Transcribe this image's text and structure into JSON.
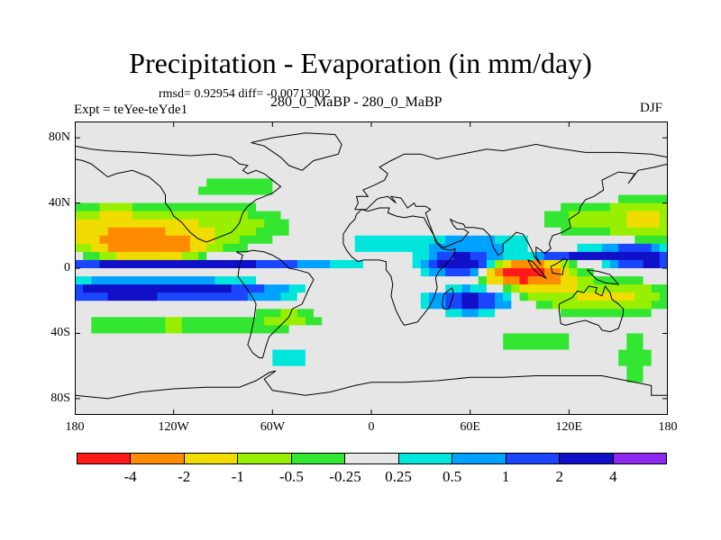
{
  "chart_data": {
    "type": "heatmap",
    "title": "Precipitation - Evaporation (in mm/day)",
    "stats_text": "rmsd= 0.92954  diff= -0.00713002",
    "subtitle": "280_0_MaBP - 280_0_MaBP",
    "left_label": "Expt = teYee-teYde1",
    "right_label": "DJF",
    "x_range": [
      -180,
      180
    ],
    "y_range": [
      -90,
      90
    ],
    "x_ticks": [
      {
        "value": -180,
        "label": "180"
      },
      {
        "value": -120,
        "label": "120W"
      },
      {
        "value": -60,
        "label": "60W"
      },
      {
        "value": 0,
        "label": "0"
      },
      {
        "value": 60,
        "label": "60E"
      },
      {
        "value": 120,
        "label": "120E"
      },
      {
        "value": 180,
        "label": "180"
      }
    ],
    "y_ticks": [
      {
        "value": 80,
        "label": "80N"
      },
      {
        "value": 40,
        "label": "40N"
      },
      {
        "value": 0,
        "label": "0"
      },
      {
        "value": -40,
        "label": "40S"
      },
      {
        "value": -80,
        "label": "80S"
      }
    ],
    "levels": [
      "-4",
      "-2",
      "-1",
      "-0.5",
      "-0.25",
      "0.25",
      "0.5",
      "1",
      "2",
      "4"
    ],
    "colors": [
      "#ff1a1a",
      "#ff8c00",
      "#f0dc00",
      "#98f000",
      "#32e632",
      "#e6e6e6",
      "#00e6dc",
      "#00a2ff",
      "#1a46ff",
      "#1010c8",
      "#8c28f0"
    ],
    "missing_color": "#e6e6e6",
    "anomalies": [
      {
        "lon": -133,
        "lat": 14,
        "slon": 26,
        "slat": 8,
        "amp": -3.5
      },
      {
        "lon": -160,
        "lat": 24,
        "slon": 30,
        "slat": 12,
        "amp": -1.6
      },
      {
        "lon": -100,
        "lat": 26,
        "slon": 45,
        "slat": 13,
        "amp": -0.9
      },
      {
        "lon": -120,
        "lat": 3,
        "slon": 70,
        "slat": 2.6,
        "amp": 3.5
      },
      {
        "lon": -155,
        "lat": -14,
        "slon": 35,
        "slat": 5,
        "amp": 3.0
      },
      {
        "lon": -100,
        "lat": -14,
        "slon": 40,
        "slat": 5,
        "amp": 2.6
      },
      {
        "lon": -120,
        "lat": -35,
        "slon": 60,
        "slat": 6,
        "amp": -0.6
      },
      {
        "lon": -50,
        "lat": -30,
        "slon": 18,
        "slat": 6,
        "amp": -0.6
      },
      {
        "lon": 90,
        "lat": -3,
        "slon": 17,
        "slat": 6,
        "amp": -5.5
      },
      {
        "lon": 106,
        "lat": -6,
        "slon": 18,
        "slat": 12,
        "amp": -1.7
      },
      {
        "lon": 145,
        "lat": -18,
        "slon": 30,
        "slat": 10,
        "amp": -1.2
      },
      {
        "lon": 135,
        "lat": 8,
        "slon": 40,
        "slat": 3,
        "amp": 2.6
      },
      {
        "lon": 170,
        "lat": 4,
        "slon": 20,
        "slat": 3,
        "amp": 2.6
      },
      {
        "lon": 160,
        "lat": 10,
        "slon": 15,
        "slat": 4,
        "amp": 2.0
      },
      {
        "lon": 55,
        "lat": 3,
        "slon": 18,
        "slat": 6,
        "amp": 3.4
      },
      {
        "lon": 60,
        "lat": -20,
        "slon": 20,
        "slat": 6,
        "amp": 2.5
      },
      {
        "lon": 60,
        "lat": 15,
        "slon": 45,
        "slat": 5,
        "amp": 0.7
      },
      {
        "lon": 5,
        "lat": 15,
        "slon": 20,
        "slat": 6,
        "amp": 0.4
      },
      {
        "lon": 140,
        "lat": 30,
        "slon": 35,
        "slat": 10,
        "amp": -0.7
      },
      {
        "lon": 170,
        "lat": 30,
        "slon": 20,
        "slat": 12,
        "amp": -0.8
      },
      {
        "lon": 100,
        "lat": -45,
        "slon": 25,
        "slat": 6,
        "amp": -0.6
      },
      {
        "lon": 160,
        "lat": -55,
        "slon": 10,
        "slat": 18,
        "amp": -0.5
      },
      {
        "lon": -80,
        "lat": 50,
        "slon": 40,
        "slat": 6,
        "amp": -0.35
      },
      {
        "lon": -50,
        "lat": -55,
        "slon": 20,
        "slat": 6,
        "amp": 0.4
      }
    ],
    "coastlines": [
      [
        [
          -180,
          75
        ],
        [
          -170,
          73
        ],
        [
          -160,
          72
        ],
        [
          -140,
          71
        ],
        [
          -125,
          70
        ],
        [
          -110,
          69
        ],
        [
          -95,
          70
        ],
        [
          -85,
          68
        ],
        [
          -80,
          64
        ],
        [
          -75,
          63
        ],
        [
          -78,
          60
        ],
        [
          -75,
          58
        ],
        [
          -70,
          60
        ],
        [
          -65,
          58
        ],
        [
          -60,
          54
        ],
        [
          -55,
          50
        ],
        [
          -60,
          46
        ],
        [
          -65,
          44
        ],
        [
          -70,
          42
        ],
        [
          -75,
          38
        ],
        [
          -78,
          34
        ],
        [
          -80,
          28
        ],
        [
          -82,
          25
        ],
        [
          -85,
          22
        ],
        [
          -90,
          20
        ],
        [
          -95,
          18
        ],
        [
          -100,
          16
        ],
        [
          -105,
          18
        ],
        [
          -110,
          22
        ],
        [
          -115,
          28
        ],
        [
          -120,
          32
        ],
        [
          -122,
          36
        ],
        [
          -125,
          40
        ],
        [
          -125,
          45
        ],
        [
          -128,
          50
        ],
        [
          -135,
          56
        ],
        [
          -145,
          60
        ],
        [
          -155,
          58
        ],
        [
          -160,
          56
        ],
        [
          -165,
          60
        ],
        [
          -170,
          64
        ],
        [
          -175,
          66
        ],
        [
          -180,
          67
        ]
      ],
      [
        [
          -82,
          10
        ],
        [
          -78,
          8
        ],
        [
          -80,
          2
        ],
        [
          -81,
          -5
        ],
        [
          -76,
          -12
        ],
        [
          -72,
          -18
        ],
        [
          -70,
          -22
        ],
        [
          -71,
          -30
        ],
        [
          -73,
          -40
        ],
        [
          -75,
          -47
        ],
        [
          -72,
          -52
        ],
        [
          -68,
          -55
        ],
        [
          -66,
          -55
        ],
        [
          -64,
          -48
        ],
        [
          -62,
          -42
        ],
        [
          -58,
          -38
        ],
        [
          -55,
          -35
        ],
        [
          -50,
          -30
        ],
        [
          -48,
          -25
        ],
        [
          -42,
          -22
        ],
        [
          -38,
          -13
        ],
        [
          -35,
          -7
        ],
        [
          -38,
          -3
        ],
        [
          -45,
          -1
        ],
        [
          -50,
          0
        ],
        [
          -55,
          5
        ],
        [
          -60,
          8
        ],
        [
          -65,
          10
        ],
        [
          -72,
          11
        ],
        [
          -76,
          10
        ],
        [
          -82,
          10
        ]
      ],
      [
        [
          -73,
          77
        ],
        [
          -60,
          80
        ],
        [
          -40,
          83
        ],
        [
          -22,
          82
        ],
        [
          -18,
          76
        ],
        [
          -20,
          70
        ],
        [
          -35,
          66
        ],
        [
          -42,
          60
        ],
        [
          -50,
          63
        ],
        [
          -55,
          68
        ],
        [
          -65,
          75
        ],
        [
          -73,
          77
        ]
      ],
      [
        [
          -10,
          36
        ],
        [
          -8,
          40
        ],
        [
          -9,
          44
        ],
        [
          -2,
          44
        ],
        [
          -5,
          48
        ],
        [
          2,
          51
        ],
        [
          8,
          54
        ],
        [
          10,
          58
        ],
        [
          5,
          62
        ],
        [
          12,
          66
        ],
        [
          20,
          70
        ],
        [
          30,
          70
        ],
        [
          40,
          67
        ],
        [
          55,
          70
        ],
        [
          70,
          73
        ],
        [
          80,
          72
        ],
        [
          100,
          76
        ],
        [
          110,
          74
        ],
        [
          130,
          71
        ],
        [
          150,
          71
        ],
        [
          170,
          70
        ],
        [
          180,
          68
        ],
        [
          180,
          64
        ],
        [
          172,
          62
        ],
        [
          162,
          60
        ],
        [
          156,
          52
        ],
        [
          160,
          58
        ],
        [
          150,
          59
        ],
        [
          140,
          54
        ],
        [
          141,
          48
        ],
        [
          135,
          44
        ],
        [
          130,
          42
        ],
        [
          127,
          38
        ],
        [
          126,
          34
        ],
        [
          120,
          30
        ],
        [
          121,
          25
        ],
        [
          116,
          22
        ],
        [
          110,
          20
        ],
        [
          108,
          15
        ],
        [
          109,
          12
        ],
        [
          105,
          9
        ],
        [
          103,
          11
        ],
        [
          100,
          13
        ],
        [
          100,
          7
        ],
        [
          103,
          2
        ],
        [
          99,
          7
        ],
        [
          98,
          10
        ],
        [
          95,
          16
        ],
        [
          92,
          21
        ],
        [
          88,
          22
        ],
        [
          85,
          19
        ],
        [
          80,
          15
        ],
        [
          80,
          10
        ],
        [
          77,
          8
        ],
        [
          74,
          13
        ],
        [
          72,
          20
        ],
        [
          68,
          24
        ],
        [
          62,
          25
        ],
        [
          57,
          25
        ],
        [
          56,
          27
        ],
        [
          52,
          28
        ],
        [
          48,
          30
        ],
        [
          50,
          26
        ],
        [
          52,
          24
        ],
        [
          56,
          24
        ],
        [
          59,
          22
        ],
        [
          55,
          17
        ],
        [
          52,
          16
        ],
        [
          45,
          13
        ],
        [
          43,
          13
        ],
        [
          40,
          16
        ],
        [
          38,
          20
        ],
        [
          35,
          28
        ],
        [
          34,
          31
        ],
        [
          33,
          34
        ],
        [
          36,
          36
        ],
        [
          33,
          38
        ],
        [
          27,
          38
        ],
        [
          26,
          40
        ],
        [
          22,
          37
        ],
        [
          20,
          40
        ],
        [
          18,
          43
        ],
        [
          12,
          44
        ],
        [
          15,
          40
        ],
        [
          10,
          44
        ],
        [
          5,
          43
        ],
        [
          3,
          42
        ],
        [
          -3,
          36
        ],
        [
          -10,
          36
        ]
      ],
      [
        [
          -17,
          15
        ],
        [
          -17,
          21
        ],
        [
          -13,
          27
        ],
        [
          -10,
          30
        ],
        [
          -9,
          33
        ],
        [
          -6,
          36
        ],
        [
          -2,
          35
        ],
        [
          5,
          37
        ],
        [
          11,
          37
        ],
        [
          10,
          34
        ],
        [
          15,
          32
        ],
        [
          20,
          31
        ],
        [
          25,
          32
        ],
        [
          32,
          31
        ],
        [
          34,
          27
        ],
        [
          38,
          20
        ],
        [
          39,
          16
        ],
        [
          43,
          12
        ],
        [
          48,
          11
        ],
        [
          51,
          12
        ],
        [
          50,
          8
        ],
        [
          45,
          2
        ],
        [
          41,
          -2
        ],
        [
          39,
          -6
        ],
        [
          40,
          -12
        ],
        [
          38,
          -18
        ],
        [
          35,
          -24
        ],
        [
          32,
          -28
        ],
        [
          28,
          -33
        ],
        [
          20,
          -35
        ],
        [
          18,
          -32
        ],
        [
          15,
          -26
        ],
        [
          12,
          -17
        ],
        [
          13,
          -10
        ],
        [
          12,
          -5
        ],
        [
          9,
          -1
        ],
        [
          9,
          4
        ],
        [
          5,
          5
        ],
        [
          0,
          5
        ],
        [
          -5,
          5
        ],
        [
          -8,
          4
        ],
        [
          -12,
          7
        ],
        [
          -15,
          11
        ],
        [
          -17,
          15
        ]
      ],
      [
        [
          44,
          -25
        ],
        [
          47,
          -25
        ],
        [
          50,
          -16
        ],
        [
          49,
          -12
        ],
        [
          44,
          -16
        ],
        [
          43,
          -22
        ],
        [
          44,
          -25
        ]
      ],
      [
        [
          114,
          -22
        ],
        [
          114,
          -26
        ],
        [
          115,
          -34
        ],
        [
          118,
          -35
        ],
        [
          125,
          -33
        ],
        [
          130,
          -32
        ],
        [
          135,
          -34
        ],
        [
          138,
          -35
        ],
        [
          140,
          -38
        ],
        [
          145,
          -39
        ],
        [
          150,
          -37
        ],
        [
          153,
          -28
        ],
        [
          153,
          -25
        ],
        [
          150,
          -22
        ],
        [
          146,
          -19
        ],
        [
          145,
          -15
        ],
        [
          142,
          -11
        ],
        [
          140,
          -17
        ],
        [
          136,
          -15
        ],
        [
          137,
          -12
        ],
        [
          132,
          -11
        ],
        [
          129,
          -15
        ],
        [
          125,
          -14
        ],
        [
          122,
          -18
        ],
        [
          114,
          -22
        ]
      ],
      [
        [
          95,
          5
        ],
        [
          98,
          4
        ],
        [
          104,
          -3
        ],
        [
          106,
          -6
        ],
        [
          102,
          -4
        ],
        [
          98,
          0
        ],
        [
          95,
          5
        ]
      ],
      [
        [
          109,
          1
        ],
        [
          113,
          3
        ],
        [
          117,
          6
        ],
        [
          119,
          5
        ],
        [
          117,
          1
        ],
        [
          116,
          -4
        ],
        [
          110,
          -3
        ],
        [
          109,
          1
        ]
      ],
      [
        [
          131,
          -1
        ],
        [
          138,
          -2
        ],
        [
          145,
          -4
        ],
        [
          150,
          -10
        ],
        [
          142,
          -9
        ],
        [
          137,
          -7
        ],
        [
          131,
          -1
        ]
      ],
      [
        [
          -180,
          -78
        ],
        [
          -160,
          -80
        ],
        [
          -140,
          -76
        ],
        [
          -120,
          -74
        ],
        [
          -100,
          -73
        ],
        [
          -80,
          -73
        ],
        [
          -70,
          -69
        ],
        [
          -62,
          -64
        ],
        [
          -58,
          -63
        ],
        [
          -65,
          -68
        ],
        [
          -60,
          -75
        ],
        [
          -40,
          -78
        ],
        [
          -25,
          -76
        ],
        [
          -10,
          -72
        ],
        [
          0,
          -70
        ],
        [
          20,
          -70
        ],
        [
          40,
          -69
        ],
        [
          60,
          -67
        ],
        [
          80,
          -67
        ],
        [
          100,
          -66
        ],
        [
          120,
          -66
        ],
        [
          140,
          -66
        ],
        [
          160,
          -70
        ],
        [
          170,
          -72
        ],
        [
          170,
          -78
        ],
        [
          180,
          -78
        ]
      ]
    ],
    "colorbar_label_fractions": [
      0.091,
      0.182,
      0.273,
      0.364,
      0.455,
      0.545,
      0.636,
      0.727,
      0.818,
      0.909
    ]
  }
}
